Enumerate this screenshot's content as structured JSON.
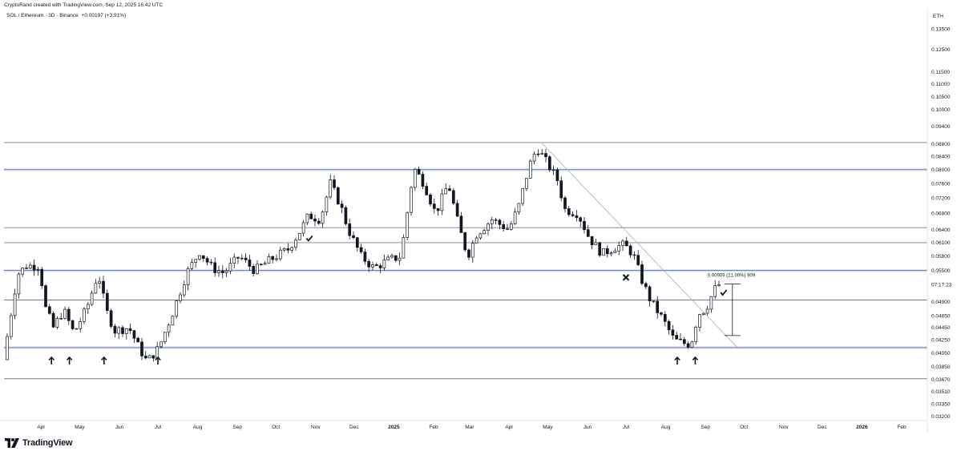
{
  "header": {
    "credit": "CryptoRand created with TradingView.com, Sep 12, 2025 16:42 UTC",
    "symbol": "SOL / Ethereum · 3D · Binance",
    "change": "+0.00197 (+3.91%)"
  },
  "brand": {
    "name": "TradingView",
    "logo_icon": "tradingview-logo-icon"
  },
  "colors": {
    "up": "#131722",
    "down": "#131722",
    "up_fill": "#ffffff",
    "line": "#787b86",
    "blue_level": "#2962ff",
    "axis_text": "#131722"
  },
  "chart_data": {
    "type": "candlestick",
    "y_scale": "log",
    "y_unit": "ETH",
    "ylim": [
      0.0315,
      0.145
    ],
    "y_ticks": [
      0.135,
      0.125,
      0.115,
      0.11,
      0.105,
      0.1,
      0.094,
      0.088,
      0.084,
      0.08,
      0.076,
      0.072,
      0.068,
      0.064,
      0.061,
      0.058,
      0.055,
      0.049,
      0.0465,
      0.0445,
      0.0425,
      0.0405,
      0.0385,
      0.0367,
      0.0351,
      0.0335,
      0.032
    ],
    "y_tick_labels": [
      "0.13500",
      "0.12500",
      "0.11500",
      "0.11000",
      "0.10500",
      "0.10000",
      "0.09400",
      "0.08800",
      "0.08400",
      "0.08000",
      "0.07600",
      "0.07200",
      "0.06800",
      "0.06400",
      "0.06100",
      "0.05800",
      "0.05500",
      "0.04900",
      "0.04650",
      "0.04450",
      "0.04250",
      "0.04050",
      "0.03850",
      "0.03670",
      "0.03510",
      "0.03350",
      "0.03200"
    ],
    "price_label": {
      "text": "07:17:23",
      "value": 0.0522
    },
    "x_ticks": [
      {
        "label": "Apr",
        "date": "2024-04-01"
      },
      {
        "label": "May",
        "date": "2024-05-01"
      },
      {
        "label": "Jun",
        "date": "2024-06-01"
      },
      {
        "label": "Jul",
        "date": "2024-07-01"
      },
      {
        "label": "Aug",
        "date": "2024-08-01"
      },
      {
        "label": "Sep",
        "date": "2024-09-01"
      },
      {
        "label": "Oct",
        "date": "2024-10-01"
      },
      {
        "label": "Nov",
        "date": "2024-11-01"
      },
      {
        "label": "Dec",
        "date": "2024-12-01"
      },
      {
        "label": "2025",
        "date": "2025-01-01"
      },
      {
        "label": "Feb",
        "date": "2025-02-01"
      },
      {
        "label": "Mar",
        "date": "2025-03-01"
      },
      {
        "label": "Apr",
        "date": "2025-04-01"
      },
      {
        "label": "May",
        "date": "2025-05-01"
      },
      {
        "label": "Jun",
        "date": "2025-06-01"
      },
      {
        "label": "Jul",
        "date": "2025-07-01"
      },
      {
        "label": "Aug",
        "date": "2025-08-01"
      },
      {
        "label": "Sep",
        "date": "2025-09-01"
      },
      {
        "label": "Oct",
        "date": "2025-10-01"
      },
      {
        "label": "Nov",
        "date": "2025-11-01"
      },
      {
        "label": "Dec",
        "date": "2025-12-01"
      },
      {
        "label": "2026",
        "date": "2026-01-01"
      },
      {
        "label": "Feb",
        "date": "2026-02-01"
      }
    ],
    "x_range": [
      "2024-03-03",
      "2026-02-21"
    ],
    "anchors": [
      {
        "date": "2024-03-04",
        "price": 0.0395
      },
      {
        "date": "2024-03-15",
        "price": 0.0542
      },
      {
        "date": "2024-03-22",
        "price": 0.056
      },
      {
        "date": "2024-04-01",
        "price": 0.056
      },
      {
        "date": "2024-04-06",
        "price": 0.0478
      },
      {
        "date": "2024-04-12",
        "price": 0.0445
      },
      {
        "date": "2024-04-20",
        "price": 0.0475
      },
      {
        "date": "2024-04-28",
        "price": 0.0436
      },
      {
        "date": "2024-05-08",
        "price": 0.0478
      },
      {
        "date": "2024-05-17",
        "price": 0.0545
      },
      {
        "date": "2024-05-23",
        "price": 0.0475
      },
      {
        "date": "2024-05-30",
        "price": 0.044
      },
      {
        "date": "2024-06-10",
        "price": 0.0445
      },
      {
        "date": "2024-06-18",
        "price": 0.0412
      },
      {
        "date": "2024-06-24",
        "price": 0.0392
      },
      {
        "date": "2024-07-03",
        "price": 0.0412
      },
      {
        "date": "2024-07-14",
        "price": 0.047
      },
      {
        "date": "2024-07-25",
        "price": 0.0545
      },
      {
        "date": "2024-08-04",
        "price": 0.059
      },
      {
        "date": "2024-08-14",
        "price": 0.0555
      },
      {
        "date": "2024-08-23",
        "price": 0.0545
      },
      {
        "date": "2024-09-04",
        "price": 0.058
      },
      {
        "date": "2024-09-16",
        "price": 0.055
      },
      {
        "date": "2024-09-28",
        "price": 0.0572
      },
      {
        "date": "2024-10-12",
        "price": 0.0595
      },
      {
        "date": "2024-10-22",
        "price": 0.064
      },
      {
        "date": "2024-10-28",
        "price": 0.0675
      },
      {
        "date": "2024-11-06",
        "price": 0.0665
      },
      {
        "date": "2024-11-14",
        "price": 0.076
      },
      {
        "date": "2024-11-22",
        "price": 0.07
      },
      {
        "date": "2024-11-28",
        "price": 0.064
      },
      {
        "date": "2024-12-08",
        "price": 0.058
      },
      {
        "date": "2024-12-18",
        "price": 0.0555
      },
      {
        "date": "2024-12-28",
        "price": 0.057
      },
      {
        "date": "2025-01-08",
        "price": 0.058
      },
      {
        "date": "2025-01-18",
        "price": 0.0805
      },
      {
        "date": "2025-01-26",
        "price": 0.076
      },
      {
        "date": "2025-02-04",
        "price": 0.068
      },
      {
        "date": "2025-02-14",
        "price": 0.076
      },
      {
        "date": "2025-02-22",
        "price": 0.065
      },
      {
        "date": "2025-03-01",
        "price": 0.058
      },
      {
        "date": "2025-03-08",
        "price": 0.063
      },
      {
        "date": "2025-03-20",
        "price": 0.0665
      },
      {
        "date": "2025-04-02",
        "price": 0.064
      },
      {
        "date": "2025-04-10",
        "price": 0.07
      },
      {
        "date": "2025-04-18",
        "price": 0.081
      },
      {
        "date": "2025-04-24",
        "price": 0.0868
      },
      {
        "date": "2025-05-02",
        "price": 0.082
      },
      {
        "date": "2025-05-10",
        "price": 0.077
      },
      {
        "date": "2025-05-16",
        "price": 0.069
      },
      {
        "date": "2025-05-26",
        "price": 0.068
      },
      {
        "date": "2025-06-04",
        "price": 0.062
      },
      {
        "date": "2025-06-14",
        "price": 0.0585
      },
      {
        "date": "2025-06-24",
        "price": 0.06
      },
      {
        "date": "2025-07-01",
        "price": 0.0605
      },
      {
        "date": "2025-07-08",
        "price": 0.0585
      },
      {
        "date": "2025-07-15",
        "price": 0.053
      },
      {
        "date": "2025-07-22",
        "price": 0.049
      },
      {
        "date": "2025-07-31",
        "price": 0.046
      },
      {
        "date": "2025-08-09",
        "price": 0.0425
      },
      {
        "date": "2025-08-16",
        "price": 0.042
      },
      {
        "date": "2025-08-22",
        "price": 0.0418
      },
      {
        "date": "2025-08-28",
        "price": 0.0468
      },
      {
        "date": "2025-09-03",
        "price": 0.0478
      },
      {
        "date": "2025-09-09",
        "price": 0.051
      },
      {
        "date": "2025-09-12",
        "price": 0.0522
      }
    ],
    "horizontal_levels": [
      {
        "price": 0.0885,
        "style": "gray"
      },
      {
        "price": 0.08,
        "style": "blue"
      },
      {
        "price": 0.0645,
        "style": "gray"
      },
      {
        "price": 0.061,
        "style": "gray"
      },
      {
        "price": 0.055,
        "style": "blue"
      },
      {
        "price": 0.0493,
        "style": "gray"
      },
      {
        "price": 0.0413,
        "style": "blue"
      },
      {
        "price": 0.0368,
        "style": "gray"
      }
    ],
    "trendline": {
      "from": {
        "date": "2025-04-26",
        "price": 0.0885
      },
      "to": {
        "date": "2025-09-26",
        "price": 0.0413
      }
    },
    "measure": {
      "label": "0.00909 (21.00%) 909",
      "date": "2025-09-22",
      "from_price": 0.0432,
      "to_price": 0.0523
    },
    "up_arrows": [
      "2024-04-09",
      "2024-04-23",
      "2024-05-20",
      "2024-07-01",
      "2025-08-10",
      "2025-08-24"
    ],
    "check_marks": [
      {
        "date": "2024-10-27",
        "price": 0.062
      },
      {
        "date": "2025-09-15",
        "price": 0.0507
      }
    ],
    "cross_marks": [
      {
        "date": "2025-07-01",
        "price": 0.0536
      }
    ]
  }
}
